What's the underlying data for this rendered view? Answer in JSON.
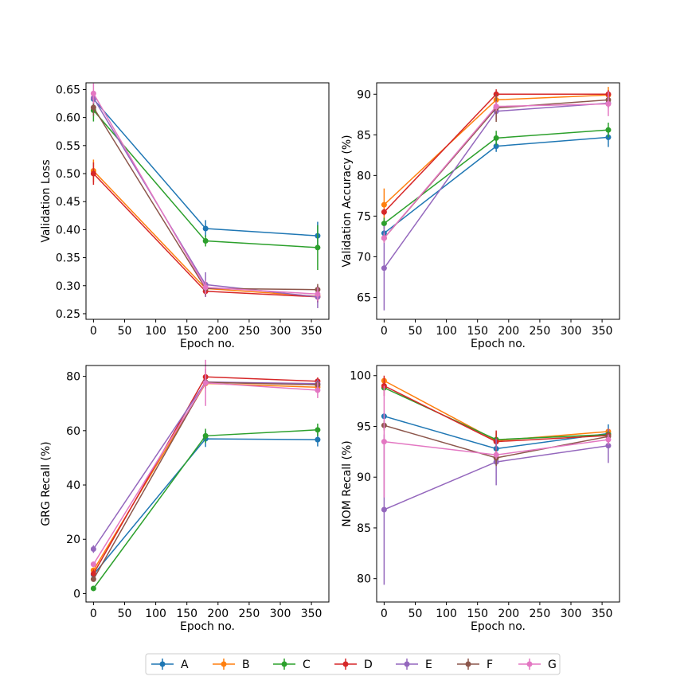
{
  "chart_data": [
    {
      "type": "line",
      "xlabel": "Epoch no.",
      "ylabel": "Validation Loss",
      "xlim": [
        -12,
        378
      ],
      "ylim": [
        0.24,
        0.662
      ],
      "xticks": [
        "0",
        "50",
        "100",
        "150",
        "200",
        "250",
        "300",
        "350"
      ],
      "yticks": [
        "0.25",
        "0.30",
        "0.35",
        "0.40",
        "0.45",
        "0.50",
        "0.55",
        "0.60",
        "0.65"
      ],
      "x": [
        0,
        180,
        360
      ],
      "series": [
        {
          "name": "A",
          "values": [
            0.633,
            0.402,
            0.389
          ],
          "errors": [
            0.012,
            0.015,
            0.025
          ]
        },
        {
          "name": "B",
          "values": [
            0.505,
            0.295,
            0.281
          ],
          "errors": [
            0.02,
            0.012,
            0.01
          ]
        },
        {
          "name": "C",
          "values": [
            0.613,
            0.38,
            0.368
          ],
          "errors": [
            0.02,
            0.01,
            0.04
          ]
        },
        {
          "name": "D",
          "values": [
            0.5,
            0.29,
            0.28
          ],
          "errors": [
            0.02,
            0.01,
            0.01
          ]
        },
        {
          "name": "E",
          "values": [
            0.635,
            0.302,
            0.28
          ],
          "errors": [
            0.01,
            0.022,
            0.02
          ]
        },
        {
          "name": "F",
          "values": [
            0.618,
            0.295,
            0.293
          ],
          "errors": [
            0.015,
            0.012,
            0.01
          ]
        },
        {
          "name": "G",
          "values": [
            0.643,
            0.297,
            0.285
          ],
          "errors": [
            0.018,
            0.012,
            0.012
          ]
        }
      ]
    },
    {
      "type": "line",
      "xlabel": "Epoch no.",
      "ylabel": "Validation Accuracy (%)",
      "xlim": [
        -12,
        378
      ],
      "ylim": [
        62.3,
        91.4
      ],
      "xticks": [
        "0",
        "50",
        "100",
        "150",
        "200",
        "250",
        "300",
        "350"
      ],
      "yticks": [
        "65",
        "70",
        "75",
        "80",
        "85",
        "90"
      ],
      "x": [
        0,
        180,
        360
      ],
      "series": [
        {
          "name": "A",
          "values": [
            72.9,
            83.6,
            84.7
          ],
          "errors": [
            0.4,
            0.7,
            1.2
          ]
        },
        {
          "name": "B",
          "values": [
            76.4,
            89.3,
            89.9
          ],
          "errors": [
            2.0,
            0.6,
            1.0
          ]
        },
        {
          "name": "C",
          "values": [
            74.1,
            84.6,
            85.6
          ],
          "errors": [
            0.7,
            0.9,
            0.9
          ]
        },
        {
          "name": "D",
          "values": [
            75.5,
            90.0,
            90.0
          ],
          "errors": [
            0.4,
            0.6,
            0.5
          ]
        },
        {
          "name": "E",
          "values": [
            68.6,
            87.9,
            88.9
          ],
          "errors": [
            5.2,
            1.1,
            0.6
          ]
        },
        {
          "name": "F",
          "values": [
            72.3,
            88.3,
            89.3
          ],
          "errors": [
            0.5,
            1.7,
            0.7
          ]
        },
        {
          "name": "G",
          "values": [
            72.3,
            88.5,
            88.8
          ],
          "errors": [
            0.6,
            0.6,
            1.5
          ]
        }
      ]
    },
    {
      "type": "line",
      "xlabel": "Epoch no.",
      "ylabel": "GRG Recall (%)",
      "xlim": [
        -12,
        378
      ],
      "ylim": [
        -3.1,
        84.0
      ],
      "xticks": [
        "0",
        "50",
        "100",
        "150",
        "200",
        "250",
        "300",
        "350"
      ],
      "yticks": [
        "0",
        "20",
        "40",
        "60",
        "80"
      ],
      "x": [
        0,
        180,
        360
      ],
      "series": [
        {
          "name": "A",
          "values": [
            7.0,
            57.0,
            56.7
          ],
          "errors": [
            0.7,
            3.0,
            2.5
          ]
        },
        {
          "name": "B",
          "values": [
            8.6,
            77.4,
            76.0
          ],
          "errors": [
            1.0,
            1.8,
            1.5
          ]
        },
        {
          "name": "C",
          "values": [
            1.9,
            58.1,
            60.3
          ],
          "errors": [
            0.6,
            2.6,
            2.3
          ]
        },
        {
          "name": "D",
          "values": [
            7.3,
            79.8,
            78.2
          ],
          "errors": [
            1.6,
            3.0,
            1.4
          ]
        },
        {
          "name": "E",
          "values": [
            16.4,
            77.9,
            77.3
          ],
          "errors": [
            1.4,
            1.0,
            1.6
          ]
        },
        {
          "name": "F",
          "values": [
            5.3,
            77.8,
            76.9
          ],
          "errors": [
            0.8,
            2.3,
            1.3
          ]
        },
        {
          "name": "G",
          "values": [
            10.8,
            77.6,
            74.9
          ],
          "errors": [
            1.0,
            8.5,
            2.9
          ]
        }
      ]
    },
    {
      "type": "line",
      "xlabel": "Epoch no.",
      "ylabel": "NOM Recall (%)",
      "xlim": [
        -12,
        378
      ],
      "ylim": [
        77.7,
        101.0
      ],
      "xticks": [
        "0",
        "50",
        "100",
        "150",
        "200",
        "250",
        "300",
        "350"
      ],
      "yticks": [
        "80",
        "85",
        "90",
        "95",
        "100"
      ],
      "x": [
        0,
        180,
        360
      ],
      "series": [
        {
          "name": "A",
          "values": [
            96.0,
            92.8,
            94.3
          ],
          "errors": [
            0.3,
            0.4,
            0.9
          ]
        },
        {
          "name": "B",
          "values": [
            99.5,
            93.6,
            94.5
          ],
          "errors": [
            0.3,
            0.7,
            0.3
          ]
        },
        {
          "name": "C",
          "values": [
            98.8,
            93.7,
            94.2
          ],
          "errors": [
            0.3,
            0.8,
            0.5
          ]
        },
        {
          "name": "D",
          "values": [
            99.0,
            93.5,
            94.1
          ],
          "errors": [
            1.0,
            1.1,
            0.6
          ]
        },
        {
          "name": "E",
          "values": [
            86.8,
            91.5,
            93.1
          ],
          "errors": [
            7.4,
            2.3,
            1.7
          ]
        },
        {
          "name": "F",
          "values": [
            95.1,
            91.9,
            94.0
          ],
          "errors": [
            0.5,
            0.8,
            0.5
          ]
        },
        {
          "name": "G",
          "values": [
            93.5,
            92.2,
            93.7
          ],
          "errors": [
            5.5,
            0.4,
            0.5
          ]
        }
      ]
    }
  ],
  "legend": {
    "position": "bottom-center",
    "entries": [
      "A",
      "B",
      "C",
      "D",
      "E",
      "F",
      "G"
    ]
  },
  "colors": {
    "A": "#1f77b4",
    "B": "#ff7f0e",
    "C": "#2ca02c",
    "D": "#d62728",
    "E": "#9467bd",
    "F": "#8c564b",
    "G": "#e377c2"
  }
}
